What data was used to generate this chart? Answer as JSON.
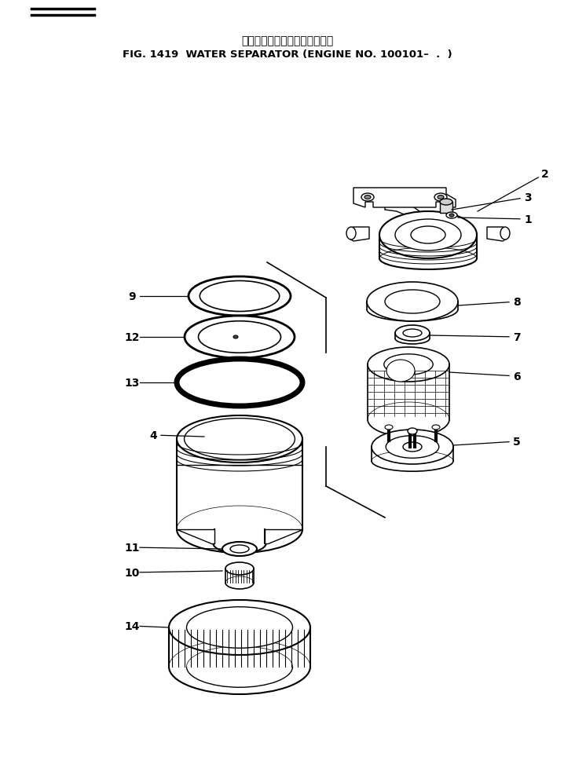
{
  "title_japanese": "ウォータセパレータ　通用底機",
  "title_english": "FIG. 1419  WATER SEPARATOR (ENGINE NO. 100101–  .  )",
  "bg_color": "#ffffff",
  "line_color": "#000000",
  "fig_w": 7.32,
  "fig_h": 9.79,
  "dpi": 100
}
